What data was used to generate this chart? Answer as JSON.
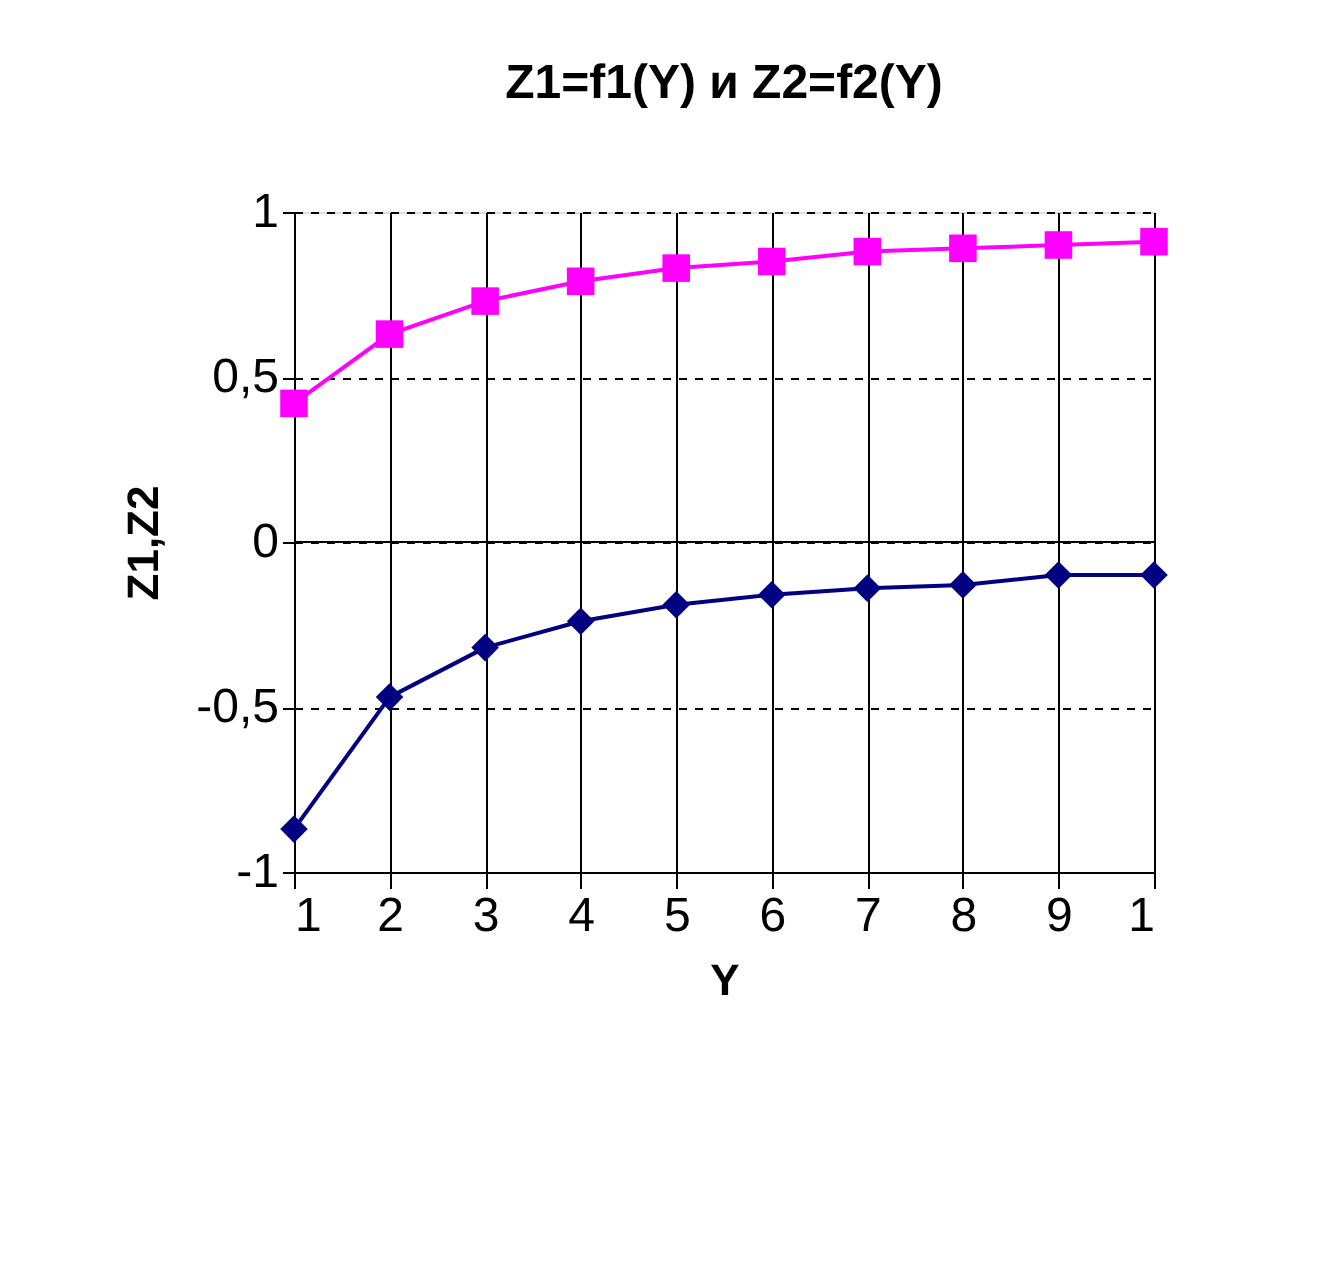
{
  "chart_data": {
    "type": "line",
    "title": "Z1=f1(Y) и Z2=f2(Y)",
    "xlabel": "Y",
    "ylabel": "Z1,Z2",
    "categories": [
      "1",
      "2",
      "3",
      "4",
      "5",
      "6",
      "7",
      "8",
      "9",
      "1"
    ],
    "series": [
      {
        "color": "#000080",
        "marker": "diamond",
        "values": [
          -0.87,
          -0.47,
          -0.32,
          -0.24,
          -0.19,
          -0.16,
          -0.14,
          -0.13,
          -0.1,
          -0.1
        ]
      },
      {
        "color": "#ff00ff",
        "marker": "square",
        "values": [
          0.42,
          0.63,
          0.73,
          0.79,
          0.83,
          0.85,
          0.88,
          0.89,
          0.9,
          0.91
        ]
      }
    ],
    "ylim": [
      -1,
      1
    ],
    "yticks": [
      1,
      {
        "value": 0.5,
        "label": "0,5"
      },
      0,
      {
        "value": -0.5,
        "label": "-0,5"
      },
      -1
    ],
    "grid": true,
    "line_style": "solid"
  }
}
